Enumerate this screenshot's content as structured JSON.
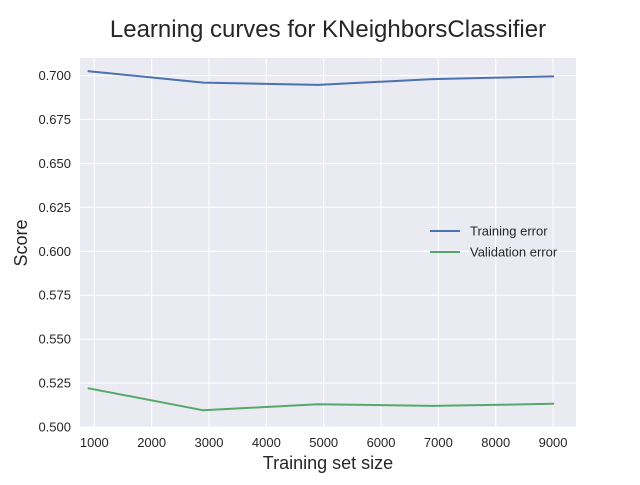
{
  "chart_data": {
    "type": "line",
    "title": "Learning curves for KNeighborsClassifier",
    "xlabel": "Training set size",
    "ylabel": "Score",
    "xlim": [
      750,
      9400
    ],
    "ylim": [
      0.5,
      0.71
    ],
    "xticks": [
      1000,
      2000,
      3000,
      4000,
      5000,
      6000,
      7000,
      8000,
      9000
    ],
    "yticks": [
      0.5,
      0.525,
      0.55,
      0.575,
      0.6,
      0.625,
      0.65,
      0.675,
      0.7
    ],
    "ytick_labels": [
      "0.500",
      "0.525",
      "0.550",
      "0.575",
      "0.600",
      "0.625",
      "0.650",
      "0.675",
      "0.700"
    ],
    "grid": true,
    "legend_position": "center-right",
    "x": [
      900,
      2900,
      4900,
      6900,
      9000
    ],
    "series": [
      {
        "name": "Training error",
        "color": "#4c72b0",
        "values": [
          0.7025,
          0.696,
          0.6947,
          0.698,
          0.6995
        ]
      },
      {
        "name": "Validation error",
        "color": "#55a868",
        "values": [
          0.522,
          0.5095,
          0.513,
          0.512,
          0.5132
        ]
      }
    ]
  }
}
